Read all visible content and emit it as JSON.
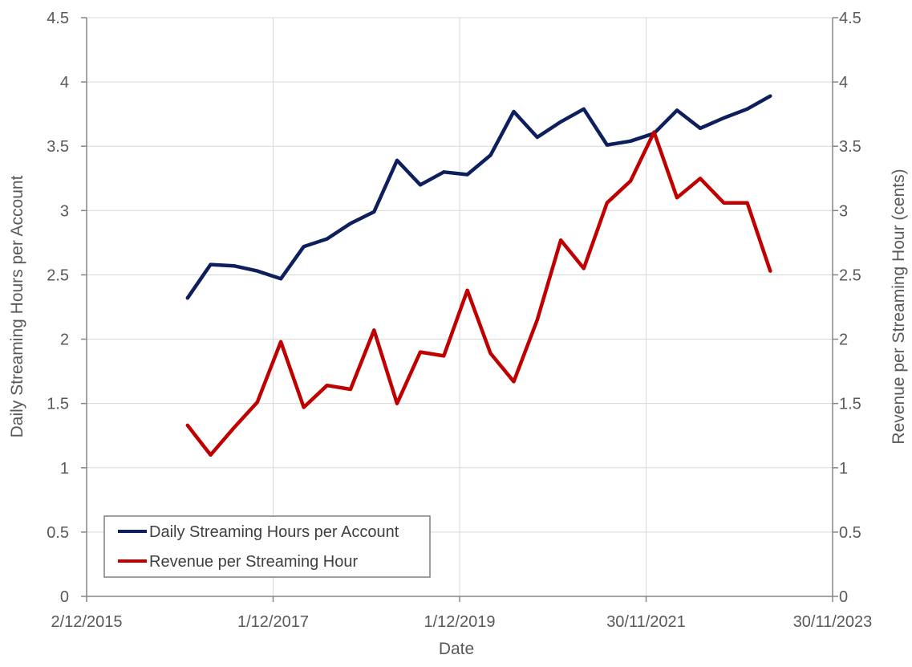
{
  "chart_data": {
    "type": "line",
    "title": "",
    "xlabel": "Date",
    "ylabel": "Daily Streaming Hours per Account",
    "y2label": "Revenue per Streaming Hour (cents)",
    "xlim": [
      "2015-12-02",
      "2023-11-30"
    ],
    "ylim": [
      0,
      4.5
    ],
    "y2lim": [
      0,
      4.5
    ],
    "x_ticks": [
      {
        "date": "2015-12-02",
        "label": "2/12/2015"
      },
      {
        "date": "2017-12-01",
        "label": "1/12/2017"
      },
      {
        "date": "2019-12-01",
        "label": "1/12/2019"
      },
      {
        "date": "2021-11-30",
        "label": "30/11/2021"
      },
      {
        "date": "2023-11-30",
        "label": "30/11/2023"
      }
    ],
    "y_ticks": [
      "0",
      "0.5",
      "1",
      "1.5",
      "2",
      "2.5",
      "3",
      "3.5",
      "4",
      "4.5"
    ],
    "y2_ticks": [
      "0",
      "0.5",
      "1",
      "1.5",
      "2",
      "2.5",
      "3",
      "3.5",
      "4",
      "4.5"
    ],
    "grid": true,
    "legend_position": "bottom-left",
    "colors": {
      "series1": "#0d1f5c",
      "series2": "#c00000",
      "grid": "#d9d9d9",
      "axis": "#868686",
      "text": "#595959"
    },
    "series": [
      {
        "name": "Daily Streaming Hours per Account",
        "axis": "left",
        "x": [
          "2016-12-31",
          "2017-03-31",
          "2017-06-30",
          "2017-09-30",
          "2017-12-31",
          "2018-03-31",
          "2018-06-30",
          "2018-09-30",
          "2018-12-31",
          "2019-03-31",
          "2019-06-30",
          "2019-09-30",
          "2019-12-31",
          "2020-03-31",
          "2020-06-30",
          "2020-09-30",
          "2020-12-31",
          "2021-03-31",
          "2021-06-30",
          "2021-09-30",
          "2021-12-31",
          "2022-03-31",
          "2022-06-30",
          "2022-09-30",
          "2022-12-31",
          "2023-03-31"
        ],
        "values": [
          2.32,
          2.58,
          2.57,
          2.53,
          2.47,
          2.72,
          2.78,
          2.9,
          2.99,
          3.39,
          3.2,
          3.3,
          3.28,
          3.43,
          3.77,
          3.57,
          3.69,
          3.79,
          3.51,
          3.54,
          3.6,
          3.78,
          3.64,
          3.72,
          3.79,
          3.89
        ]
      },
      {
        "name": "Revenue per Streaming Hour",
        "axis": "right",
        "x": [
          "2016-12-31",
          "2017-03-31",
          "2017-06-30",
          "2017-09-30",
          "2017-12-31",
          "2018-03-31",
          "2018-06-30",
          "2018-09-30",
          "2018-12-31",
          "2019-03-31",
          "2019-06-30",
          "2019-09-30",
          "2019-12-31",
          "2020-03-31",
          "2020-06-30",
          "2020-09-30",
          "2020-12-31",
          "2021-03-31",
          "2021-06-30",
          "2021-09-30",
          "2021-12-31",
          "2022-03-31",
          "2022-06-30",
          "2022-09-30",
          "2022-12-31",
          "2023-03-31"
        ],
        "values": [
          1.33,
          1.1,
          1.31,
          1.51,
          1.98,
          1.47,
          1.64,
          1.61,
          2.07,
          1.5,
          1.9,
          1.87,
          2.38,
          1.89,
          1.67,
          2.15,
          2.77,
          2.55,
          3.06,
          3.23,
          3.61,
          3.1,
          3.25,
          3.06,
          3.06,
          2.53
        ]
      }
    ]
  }
}
